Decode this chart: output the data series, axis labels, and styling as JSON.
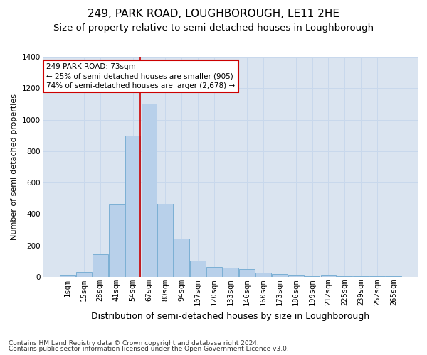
{
  "title": "249, PARK ROAD, LOUGHBOROUGH, LE11 2HE",
  "subtitle": "Size of property relative to semi-detached houses in Loughborough",
  "xlabel": "Distribution of semi-detached houses by size in Loughborough",
  "ylabel": "Number of semi-detached properties",
  "footer1": "Contains HM Land Registry data © Crown copyright and database right 2024.",
  "footer2": "Contains public sector information licensed under the Open Government Licence v3.0.",
  "annotation_title": "249 PARK ROAD: 73sqm",
  "annotation_line1": "← 25% of semi-detached houses are smaller (905)",
  "annotation_line2": "74% of semi-detached houses are larger (2,678) →",
  "categories": [
    "1sqm",
    "15sqm",
    "28sqm",
    "41sqm",
    "54sqm",
    "67sqm",
    "80sqm",
    "94sqm",
    "107sqm",
    "120sqm",
    "133sqm",
    "146sqm",
    "160sqm",
    "173sqm",
    "186sqm",
    "199sqm",
    "212sqm",
    "225sqm",
    "239sqm",
    "252sqm",
    "265sqm"
  ],
  "values": [
    10,
    30,
    145,
    460,
    900,
    1100,
    465,
    245,
    105,
    65,
    60,
    50,
    25,
    20,
    10,
    5,
    10,
    5,
    5,
    5,
    5
  ],
  "bar_color": "#b8d0ea",
  "bar_edgecolor": "#7bafd4",
  "vline_x": 4.46,
  "vline_color": "#cc0000",
  "grid_color": "#c8d8ec",
  "background_color": "#dae4f0",
  "ylim": [
    0,
    1400
  ],
  "yticks": [
    0,
    200,
    400,
    600,
    800,
    1000,
    1200,
    1400
  ],
  "title_fontsize": 11,
  "subtitle_fontsize": 9.5,
  "xlabel_fontsize": 9,
  "ylabel_fontsize": 8,
  "tick_fontsize": 7.5,
  "footer_fontsize": 6.5,
  "annot_fontsize": 7.5
}
